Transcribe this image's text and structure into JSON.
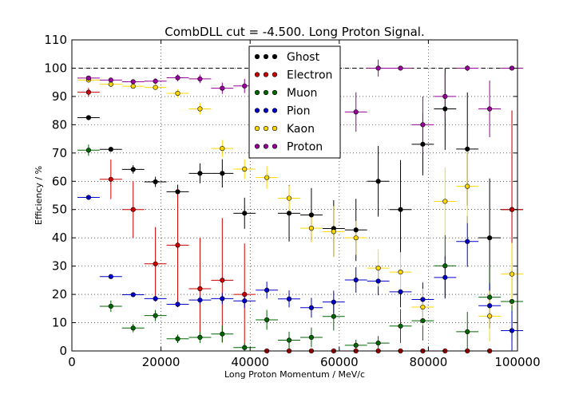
{
  "chart_data": {
    "type": "scatter",
    "title": "CombDLL cut = -4.500. Long Proton Signal.",
    "xlabel": "Long Proton Momentum / MeV/c",
    "ylabel": "Efficiency / %",
    "xlim": [
      0,
      100000
    ],
    "ylim": [
      0,
      110
    ],
    "xticks": [
      0,
      20000,
      40000,
      60000,
      80000,
      100000
    ],
    "yticks": [
      0,
      10,
      20,
      30,
      40,
      50,
      60,
      70,
      80,
      90,
      100,
      110
    ],
    "grid": true,
    "reference_line": 100,
    "legend_position": "top-center",
    "bin_half_width": 2500,
    "series": [
      {
        "name": "Ghost",
        "color": "#000000",
        "points": [
          {
            "x": 3750,
            "y": 82.5,
            "err": 0.8
          },
          {
            "x": 8750,
            "y": 71.3,
            "err": 0.8
          },
          {
            "x": 13750,
            "y": 64.2,
            "err": 1.5
          },
          {
            "x": 18750,
            "y": 59.8,
            "err": 1.8
          },
          {
            "x": 23750,
            "y": 56.3,
            "err": 2.5
          },
          {
            "x": 28750,
            "y": 62.8,
            "err": 3.5
          },
          {
            "x": 33750,
            "y": 62.8,
            "err": 5.0
          },
          {
            "x": 38750,
            "y": 48.7,
            "err": 5.5
          },
          {
            "x": 48750,
            "y": 48.7,
            "err": 10.0
          },
          {
            "x": 53750,
            "y": 48.1,
            "err": 9.5
          },
          {
            "x": 58750,
            "y": 43.3,
            "err": 10.0
          },
          {
            "x": 63750,
            "y": 42.8,
            "err": 11.0
          },
          {
            "x": 68750,
            "y": 60.0,
            "err": 12.5
          },
          {
            "x": 73750,
            "y": 50.0,
            "err": 17.5
          },
          {
            "x": 78750,
            "y": 73.1,
            "err": 11.0
          },
          {
            "x": 83750,
            "y": 85.6,
            "err": 14.5
          },
          {
            "x": 88750,
            "y": 71.4,
            "err": 20.0
          },
          {
            "x": 93750,
            "y": 40.0,
            "err": 21.0
          },
          {
            "x": 98750,
            "y": 50.0,
            "err": 35.0
          }
        ]
      },
      {
        "name": "Electron",
        "color": "#cc0000",
        "points": [
          {
            "x": 3750,
            "y": 91.5,
            "err": 1.5
          },
          {
            "x": 8750,
            "y": 60.7,
            "err": 7.0
          },
          {
            "x": 13750,
            "y": 50.0,
            "err": 10.0
          },
          {
            "x": 18750,
            "y": 30.8,
            "err": 13.0
          },
          {
            "x": 23750,
            "y": 37.4,
            "err": 20.0
          },
          {
            "x": 28750,
            "y": 22.0,
            "err": 18.0
          },
          {
            "x": 33750,
            "y": 25.0,
            "err": 22.0
          },
          {
            "x": 38750,
            "y": 20.0,
            "err": 18.0
          },
          {
            "x": 43750,
            "y": 0.0,
            "err": 0
          },
          {
            "x": 48750,
            "y": 0.0,
            "err": 0
          },
          {
            "x": 53750,
            "y": 0.0,
            "err": 0
          },
          {
            "x": 58750,
            "y": 0.0,
            "err": 0
          },
          {
            "x": 63750,
            "y": 0.0,
            "err": 0
          },
          {
            "x": 68750,
            "y": 0.0,
            "err": 0
          },
          {
            "x": 73750,
            "y": 0.0,
            "err": 0
          },
          {
            "x": 78750,
            "y": 0.0,
            "err": 0
          },
          {
            "x": 83750,
            "y": 0.0,
            "err": 0
          },
          {
            "x": 88750,
            "y": 0.0,
            "err": 0
          },
          {
            "x": 93750,
            "y": 0.0,
            "err": 0
          },
          {
            "x": 98750,
            "y": 50.0,
            "err": 35.0
          }
        ]
      },
      {
        "name": "Muon",
        "color": "#006600",
        "points": [
          {
            "x": 3750,
            "y": 71.0,
            "err": 2.0
          },
          {
            "x": 8750,
            "y": 15.8,
            "err": 2.0
          },
          {
            "x": 13750,
            "y": 8.1,
            "err": 1.5
          },
          {
            "x": 18750,
            "y": 12.5,
            "err": 2.0
          },
          {
            "x": 23750,
            "y": 4.3,
            "err": 1.5
          },
          {
            "x": 28750,
            "y": 4.8,
            "err": 2.0
          },
          {
            "x": 33750,
            "y": 6.0,
            "err": 3.0
          },
          {
            "x": 38750,
            "y": 1.2,
            "err": 1.5
          },
          {
            "x": 43750,
            "y": 11.0,
            "err": 3.5
          },
          {
            "x": 48750,
            "y": 3.8,
            "err": 3.0
          },
          {
            "x": 53750,
            "y": 4.8,
            "err": 3.5
          },
          {
            "x": 58750,
            "y": 12.2,
            "err": 5.0
          },
          {
            "x": 63750,
            "y": 2.0,
            "err": 2.0
          },
          {
            "x": 68750,
            "y": 2.8,
            "err": 2.5
          },
          {
            "x": 73750,
            "y": 8.8,
            "err": 6.0
          },
          {
            "x": 78750,
            "y": 10.7,
            "err": 7.0
          },
          {
            "x": 83750,
            "y": 30.1,
            "err": 11.0
          },
          {
            "x": 88750,
            "y": 6.8,
            "err": 7.0
          },
          {
            "x": 93750,
            "y": 19.0,
            "err": 11.0
          },
          {
            "x": 98750,
            "y": 17.5,
            "err": 14.0
          }
        ]
      },
      {
        "name": "Pion",
        "color": "#0000cc",
        "points": [
          {
            "x": 3750,
            "y": 54.3,
            "err": 0.5
          },
          {
            "x": 8750,
            "y": 26.3,
            "err": 0.5
          },
          {
            "x": 13750,
            "y": 19.9,
            "err": 0.8
          },
          {
            "x": 18750,
            "y": 18.5,
            "err": 1.0
          },
          {
            "x": 23750,
            "y": 16.5,
            "err": 1.0
          },
          {
            "x": 28750,
            "y": 18.0,
            "err": 1.5
          },
          {
            "x": 33750,
            "y": 18.5,
            "err": 2.0
          },
          {
            "x": 38750,
            "y": 17.7,
            "err": 2.5
          },
          {
            "x": 43750,
            "y": 21.5,
            "err": 3.0
          },
          {
            "x": 48750,
            "y": 18.4,
            "err": 3.0
          },
          {
            "x": 53750,
            "y": 15.3,
            "err": 3.5
          },
          {
            "x": 58750,
            "y": 17.3,
            "err": 4.0
          },
          {
            "x": 63750,
            "y": 25.1,
            "err": 4.5
          },
          {
            "x": 68750,
            "y": 24.7,
            "err": 5.0
          },
          {
            "x": 73750,
            "y": 20.9,
            "err": 5.5
          },
          {
            "x": 78750,
            "y": 18.2,
            "err": 6.0
          },
          {
            "x": 83750,
            "y": 26.0,
            "err": 7.5
          },
          {
            "x": 88750,
            "y": 38.7,
            "err": 9.0
          },
          {
            "x": 93750,
            "y": 16.0,
            "err": 8.0
          },
          {
            "x": 98750,
            "y": 7.2,
            "err": 7.0
          }
        ]
      },
      {
        "name": "Kaon",
        "color": "#ffd700",
        "points": [
          {
            "x": 3750,
            "y": 95.8,
            "err": 0.5
          },
          {
            "x": 8750,
            "y": 94.3,
            "err": 0.8
          },
          {
            "x": 13750,
            "y": 93.6,
            "err": 0.8
          },
          {
            "x": 18750,
            "y": 93.2,
            "err": 1.0
          },
          {
            "x": 23750,
            "y": 91.1,
            "err": 1.5
          },
          {
            "x": 28750,
            "y": 85.6,
            "err": 2.0
          },
          {
            "x": 33750,
            "y": 71.6,
            "err": 3.0
          },
          {
            "x": 38750,
            "y": 64.3,
            "err": 3.5
          },
          {
            "x": 43750,
            "y": 61.3,
            "err": 4.0
          },
          {
            "x": 48750,
            "y": 54.0,
            "err": 4.5
          },
          {
            "x": 53750,
            "y": 43.4,
            "err": 5.0
          },
          {
            "x": 58750,
            "y": 42.2,
            "err": 9.0
          },
          {
            "x": 63750,
            "y": 40.0,
            "err": 6.0
          },
          {
            "x": 68750,
            "y": 29.3,
            "err": 6.5
          },
          {
            "x": 73750,
            "y": 27.9,
            "err": 7.0
          },
          {
            "x": 78750,
            "y": 15.5,
            "err": 6.5
          },
          {
            "x": 83750,
            "y": 52.9,
            "err": 12.0
          },
          {
            "x": 88750,
            "y": 58.2,
            "err": 13.0
          },
          {
            "x": 93750,
            "y": 12.3,
            "err": 9.0
          },
          {
            "x": 98750,
            "y": 27.2,
            "err": 11.0
          }
        ]
      },
      {
        "name": "Proton",
        "color": "#990099",
        "points": [
          {
            "x": 3750,
            "y": 96.5,
            "err": 0.5
          },
          {
            "x": 8750,
            "y": 95.8,
            "err": 0.5
          },
          {
            "x": 13750,
            "y": 95.2,
            "err": 0.8
          },
          {
            "x": 18750,
            "y": 95.4,
            "err": 1.0
          },
          {
            "x": 23750,
            "y": 96.6,
            "err": 1.2
          },
          {
            "x": 28750,
            "y": 96.2,
            "err": 1.5
          },
          {
            "x": 33750,
            "y": 92.9,
            "err": 2.0
          },
          {
            "x": 38750,
            "y": 93.7,
            "err": 2.5
          },
          {
            "x": 63750,
            "y": 84.5,
            "err": 7.0
          },
          {
            "x": 68750,
            "y": 100.0,
            "err": 3.0
          },
          {
            "x": 73750,
            "y": 100.0,
            "err": 0.5
          },
          {
            "x": 78750,
            "y": 80.0,
            "err": 10.0
          },
          {
            "x": 83750,
            "y": 90.0,
            "err": 8.0
          },
          {
            "x": 88750,
            "y": 100.0,
            "err": 1.0
          },
          {
            "x": 93750,
            "y": 85.6,
            "err": 10.0
          },
          {
            "x": 98750,
            "y": 100.0,
            "err": 0.5
          }
        ]
      }
    ]
  }
}
